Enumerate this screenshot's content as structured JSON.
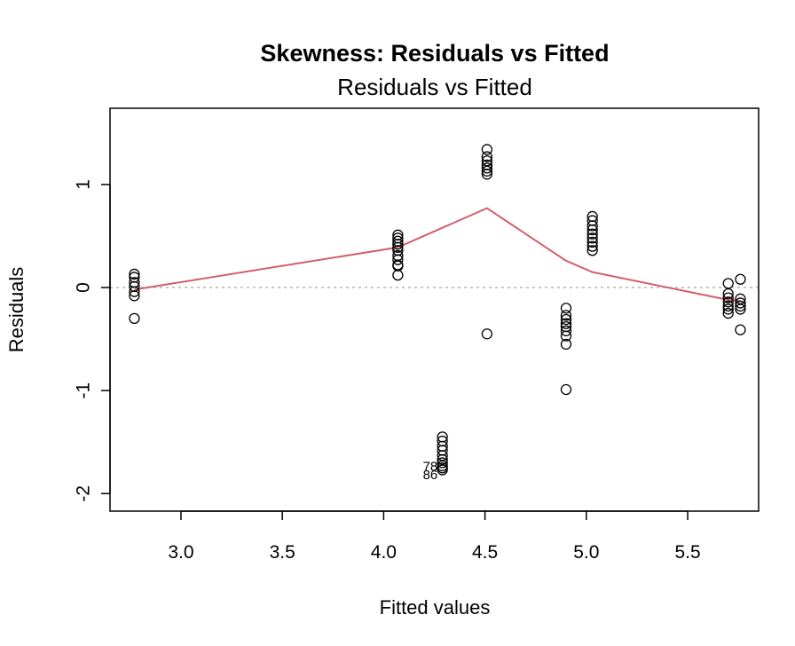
{
  "chart_data": {
    "type": "scatter",
    "title": "Skewness: Residuals vs Fitted",
    "subtitle": "Residuals vs Fitted",
    "xlabel": "Fitted values",
    "ylabel": "Residuals",
    "xlim": [
      2.65,
      5.85
    ],
    "ylim": [
      -2.17,
      1.74
    ],
    "xticks": [
      3.0,
      3.5,
      4.0,
      4.5,
      5.0,
      5.5
    ],
    "xtick_labels": [
      "3.0",
      "3.5",
      "4.0",
      "4.5",
      "5.0",
      "5.5"
    ],
    "yticks": [
      -2,
      -1,
      0,
      1
    ],
    "ytick_labels": [
      "-2",
      "-1",
      "0",
      "1"
    ],
    "reference_line": {
      "y": 0,
      "style": "dotted",
      "color": "#b3b3b3"
    },
    "points": [
      {
        "x": 2.77,
        "y": 0.13
      },
      {
        "x": 2.77,
        "y": 0.1
      },
      {
        "x": 2.77,
        "y": 0.05
      },
      {
        "x": 2.77,
        "y": 0.01
      },
      {
        "x": 2.77,
        "y": -0.04
      },
      {
        "x": 2.77,
        "y": -0.08
      },
      {
        "x": 2.77,
        "y": -0.3
      },
      {
        "x": 4.07,
        "y": 0.51
      },
      {
        "x": 4.07,
        "y": 0.48
      },
      {
        "x": 4.07,
        "y": 0.45
      },
      {
        "x": 4.07,
        "y": 0.42
      },
      {
        "x": 4.07,
        "y": 0.39
      },
      {
        "x": 4.07,
        "y": 0.36
      },
      {
        "x": 4.07,
        "y": 0.31
      },
      {
        "x": 4.07,
        "y": 0.27
      },
      {
        "x": 4.07,
        "y": 0.22
      },
      {
        "x": 4.07,
        "y": 0.21
      },
      {
        "x": 4.07,
        "y": 0.12
      },
      {
        "x": 4.29,
        "y": -1.45
      },
      {
        "x": 4.29,
        "y": -1.49
      },
      {
        "x": 4.29,
        "y": -1.54
      },
      {
        "x": 4.29,
        "y": -1.58
      },
      {
        "x": 4.29,
        "y": -1.63
      },
      {
        "x": 4.29,
        "y": -1.67
      },
      {
        "x": 4.29,
        "y": -1.7
      },
      {
        "x": 4.29,
        "y": -1.73
      },
      {
        "x": 4.29,
        "y": -1.75
      },
      {
        "x": 4.29,
        "y": -1.77
      },
      {
        "x": 4.51,
        "y": 1.34
      },
      {
        "x": 4.51,
        "y": 1.27
      },
      {
        "x": 4.51,
        "y": 1.23
      },
      {
        "x": 4.51,
        "y": 1.19
      },
      {
        "x": 4.51,
        "y": 1.16
      },
      {
        "x": 4.51,
        "y": 1.13
      },
      {
        "x": 4.51,
        "y": 1.1
      },
      {
        "x": 4.51,
        "y": -0.45
      },
      {
        "x": 4.9,
        "y": -0.2
      },
      {
        "x": 4.9,
        "y": -0.27
      },
      {
        "x": 4.9,
        "y": -0.31
      },
      {
        "x": 4.9,
        "y": -0.35
      },
      {
        "x": 4.9,
        "y": -0.38
      },
      {
        "x": 4.9,
        "y": -0.42
      },
      {
        "x": 4.9,
        "y": -0.47
      },
      {
        "x": 4.9,
        "y": -0.55
      },
      {
        "x": 4.9,
        "y": -0.99
      },
      {
        "x": 5.03,
        "y": 0.69
      },
      {
        "x": 5.03,
        "y": 0.65
      },
      {
        "x": 5.03,
        "y": 0.6
      },
      {
        "x": 5.03,
        "y": 0.56
      },
      {
        "x": 5.03,
        "y": 0.52
      },
      {
        "x": 5.03,
        "y": 0.48
      },
      {
        "x": 5.03,
        "y": 0.44
      },
      {
        "x": 5.03,
        "y": 0.4
      },
      {
        "x": 5.03,
        "y": 0.36
      },
      {
        "x": 5.7,
        "y": 0.04
      },
      {
        "x": 5.7,
        "y": -0.06
      },
      {
        "x": 5.7,
        "y": -0.1
      },
      {
        "x": 5.7,
        "y": -0.14
      },
      {
        "x": 5.7,
        "y": -0.18
      },
      {
        "x": 5.7,
        "y": -0.21
      },
      {
        "x": 5.7,
        "y": -0.25
      },
      {
        "x": 5.76,
        "y": 0.08
      },
      {
        "x": 5.76,
        "y": -0.11
      },
      {
        "x": 5.76,
        "y": -0.15
      },
      {
        "x": 5.76,
        "y": -0.18
      },
      {
        "x": 5.76,
        "y": -0.21
      },
      {
        "x": 5.76,
        "y": -0.41
      }
    ],
    "smoother": {
      "color": "#d0606e",
      "x": [
        2.77,
        4.07,
        4.29,
        4.51,
        4.9,
        5.03,
        5.7,
        5.76
      ],
      "y": [
        -0.02,
        0.39,
        0.58,
        0.77,
        0.26,
        0.15,
        -0.12,
        -0.13
      ]
    },
    "annotations": [
      {
        "text": "78",
        "x": 4.23,
        "y": -1.74
      },
      {
        "text": "86",
        "x": 4.23,
        "y": -1.82
      }
    ]
  }
}
